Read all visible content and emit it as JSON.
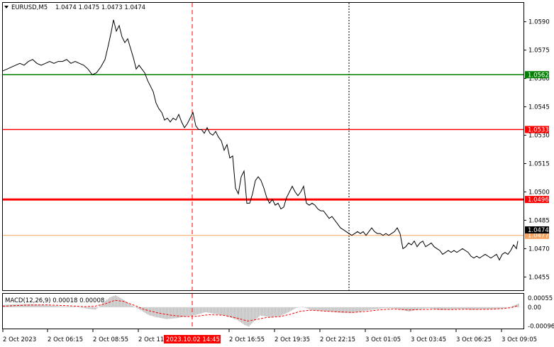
{
  "header": {
    "symbol": "EURUSD,M5",
    "ohlc": "1.0474 1.0475 1.0473 1.0474"
  },
  "macd_header": "MACD(12,26,9) 0.00018 0.00008",
  "colors": {
    "price_line": "#000000",
    "support_line": "#008000",
    "resistance_line": "#ff0000",
    "bid_line": "#f4a460",
    "cursor_line": "#ff0000",
    "macd_hist": "#c0c0c0",
    "macd_signal": "#ff0000",
    "crosshair": "#000000"
  },
  "chart_data": {
    "type": "line",
    "y_axis": {
      "ticks": [
        "1.0590",
        "1.0575",
        "1.0560",
        "1.0545",
        "1.0530",
        "1.0515",
        "1.0500",
        "1.0485",
        "1.0470",
        "1.0455"
      ],
      "range": [
        1.0448,
        1.06
      ]
    },
    "x_axis": {
      "ticks": [
        "2 Oct 2023",
        "2 Oct 06:15",
        "2 Oct 08:55",
        "2 Oct 11",
        "2 Oct 16:55",
        "2 Oct 19:35",
        "2 Oct 22:15",
        "3 Oct 01:05",
        "3 Oct 03:45",
        "3 Oct 06:25",
        "3 Oct 09:05"
      ],
      "cursor_label": "2023.10.02 14:45"
    },
    "levels": [
      {
        "value": 1.0562,
        "label": "1.0562",
        "role": "support"
      },
      {
        "value": 1.0533,
        "label": "1.0533",
        "role": "resistance"
      },
      {
        "value": 1.0496,
        "label": "1.0496",
        "role": "resistance"
      },
      {
        "value": 1.0477,
        "label": "1.0477",
        "role": "bid"
      }
    ],
    "current_price": "1.0474",
    "price_series": [
      [
        0,
        1.0564
      ],
      [
        6,
        1.0565
      ],
      [
        12,
        1.0566
      ],
      [
        18,
        1.0567
      ],
      [
        24,
        1.0568
      ],
      [
        30,
        1.0567
      ],
      [
        36,
        1.0569
      ],
      [
        42,
        1.057
      ],
      [
        48,
        1.0568
      ],
      [
        54,
        1.0567
      ],
      [
        60,
        1.0568
      ],
      [
        66,
        1.0569
      ],
      [
        72,
        1.0568
      ],
      [
        78,
        1.0569
      ],
      [
        84,
        1.0569
      ],
      [
        90,
        1.057
      ],
      [
        96,
        1.0568
      ],
      [
        102,
        1.0569
      ],
      [
        108,
        1.0568
      ],
      [
        114,
        1.0567
      ],
      [
        120,
        1.0565
      ],
      [
        126,
        1.0562
      ],
      [
        132,
        1.0563
      ],
      [
        138,
        1.0566
      ],
      [
        144,
        1.057
      ],
      [
        149,
        1.0578
      ],
      [
        153,
        1.0585
      ],
      [
        156,
        1.0591
      ],
      [
        160,
        1.0585
      ],
      [
        164,
        1.0588
      ],
      [
        168,
        1.0582
      ],
      [
        172,
        1.0579
      ],
      [
        176,
        1.0581
      ],
      [
        180,
        1.0576
      ],
      [
        184,
        1.0571
      ],
      [
        188,
        1.0565
      ],
      [
        192,
        1.0567
      ],
      [
        196,
        1.0565
      ],
      [
        200,
        1.0563
      ],
      [
        204,
        1.0559
      ],
      [
        208,
        1.0556
      ],
      [
        212,
        1.0553
      ],
      [
        216,
        1.0547
      ],
      [
        220,
        1.0544
      ],
      [
        224,
        1.0542
      ],
      [
        228,
        1.0538
      ],
      [
        232,
        1.0539
      ],
      [
        236,
        1.0537
      ],
      [
        240,
        1.0539
      ],
      [
        244,
        1.0538
      ],
      [
        248,
        1.0541
      ],
      [
        252,
        1.0537
      ],
      [
        256,
        1.0534
      ],
      [
        260,
        1.0536
      ],
      [
        264,
        1.0539
      ],
      [
        268,
        1.0542
      ],
      [
        272,
        1.0535
      ],
      [
        276,
        1.0533
      ],
      [
        280,
        1.0533
      ],
      [
        284,
        1.0531
      ],
      [
        288,
        1.0534
      ],
      [
        292,
        1.0531
      ],
      [
        296,
        1.053
      ],
      [
        300,
        1.0532
      ],
      [
        304,
        1.0529
      ],
      [
        308,
        1.0527
      ],
      [
        312,
        1.0522
      ],
      [
        316,
        1.0525
      ],
      [
        320,
        1.0518
      ],
      [
        324,
        1.0519
      ],
      [
        328,
        1.0502
      ],
      [
        332,
        1.0499
      ],
      [
        336,
        1.0508
      ],
      [
        340,
        1.0511
      ],
      [
        344,
        1.0494
      ],
      [
        348,
        1.0494
      ],
      [
        352,
        1.0499
      ],
      [
        356,
        1.0506
      ],
      [
        360,
        1.0508
      ],
      [
        364,
        1.0506
      ],
      [
        368,
        1.0502
      ],
      [
        372,
        1.0497
      ],
      [
        376,
        1.0494
      ],
      [
        380,
        1.0496
      ],
      [
        384,
        1.0493
      ],
      [
        388,
        1.0494
      ],
      [
        392,
        1.0491
      ],
      [
        396,
        1.0492
      ],
      [
        400,
        1.0497
      ],
      [
        404,
        1.05
      ],
      [
        408,
        1.0503
      ],
      [
        412,
        1.05
      ],
      [
        416,
        1.0498
      ],
      [
        420,
        1.05
      ],
      [
        424,
        1.0503
      ],
      [
        428,
        1.0494
      ],
      [
        432,
        1.0493
      ],
      [
        436,
        1.0494
      ],
      [
        440,
        1.0493
      ],
      [
        444,
        1.0491
      ],
      [
        448,
        1.049
      ],
      [
        452,
        1.049
      ],
      [
        456,
        1.0488
      ],
      [
        460,
        1.0486
      ],
      [
        464,
        1.0487
      ],
      [
        468,
        1.0485
      ],
      [
        472,
        1.0483
      ],
      [
        476,
        1.0481
      ],
      [
        480,
        1.048
      ],
      [
        484,
        1.0479
      ],
      [
        488,
        1.0478
      ],
      [
        492,
        1.0477
      ],
      [
        496,
        1.0478
      ],
      [
        500,
        1.0479
      ],
      [
        504,
        1.0478
      ],
      [
        508,
        1.0479
      ],
      [
        512,
        1.0477
      ],
      [
        516,
        1.0479
      ],
      [
        520,
        1.0481
      ],
      [
        524,
        1.0479
      ],
      [
        528,
        1.0478
      ],
      [
        532,
        1.0478
      ],
      [
        536,
        1.0477
      ],
      [
        540,
        1.0478
      ],
      [
        544,
        1.0477
      ],
      [
        548,
        1.0478
      ],
      [
        552,
        1.0479
      ],
      [
        556,
        1.0481
      ],
      [
        560,
        1.0478
      ],
      [
        564,
        1.047
      ],
      [
        568,
        1.0471
      ],
      [
        572,
        1.0473
      ],
      [
        576,
        1.0472
      ],
      [
        580,
        1.0474
      ],
      [
        584,
        1.0471
      ],
      [
        588,
        1.0473
      ],
      [
        592,
        1.0474
      ],
      [
        596,
        1.0471
      ],
      [
        600,
        1.0472
      ],
      [
        604,
        1.0473
      ],
      [
        608,
        1.0471
      ],
      [
        612,
        1.047
      ],
      [
        616,
        1.0469
      ],
      [
        620,
        1.0467
      ],
      [
        624,
        1.0468
      ],
      [
        628,
        1.0469
      ],
      [
        632,
        1.0468
      ],
      [
        636,
        1.0469
      ],
      [
        640,
        1.0468
      ],
      [
        644,
        1.0469
      ],
      [
        648,
        1.047
      ],
      [
        652,
        1.0469
      ],
      [
        656,
        1.0468
      ],
      [
        660,
        1.0466
      ],
      [
        664,
        1.0465
      ],
      [
        668,
        1.0466
      ],
      [
        672,
        1.0465
      ],
      [
        676,
        1.0466
      ],
      [
        680,
        1.0467
      ],
      [
        684,
        1.0466
      ],
      [
        688,
        1.0465
      ],
      [
        692,
        1.0466
      ],
      [
        696,
        1.0467
      ],
      [
        700,
        1.0464
      ],
      [
        704,
        1.0467
      ],
      [
        708,
        1.0468
      ],
      [
        712,
        1.0467
      ],
      [
        716,
        1.0469
      ],
      [
        720,
        1.0472
      ],
      [
        724,
        1.047
      ],
      [
        726,
        1.0474
      ]
    ],
    "macd": {
      "y_ticks": [
        "0.00055",
        "0.00",
        "-0.00096"
      ],
      "y_range": [
        -0.00108,
        0.00068
      ],
      "histogram": [
        [
          0,
          0.00012
        ],
        [
          20,
          0.00015
        ],
        [
          40,
          0.00016
        ],
        [
          60,
          0.0001
        ],
        [
          80,
          5e-05
        ],
        [
          100,
          3e-05
        ],
        [
          120,
          -8e-05
        ],
        [
          130,
          -0.00012
        ],
        [
          140,
          0.0002
        ],
        [
          150,
          0.0005
        ],
        [
          158,
          0.0006
        ],
        [
          166,
          0.00045
        ],
        [
          180,
          0.00012
        ],
        [
          195,
          -0.00018
        ],
        [
          205,
          -0.0004
        ],
        [
          215,
          -0.0005
        ],
        [
          230,
          -0.0006
        ],
        [
          245,
          -0.00055
        ],
        [
          255,
          -0.00048
        ],
        [
          270,
          -0.0004
        ],
        [
          285,
          -0.00025
        ],
        [
          300,
          -0.00035
        ],
        [
          315,
          -0.00045
        ],
        [
          330,
          -0.00065
        ],
        [
          340,
          -0.0009
        ],
        [
          346,
          -0.00098
        ],
        [
          352,
          -0.00075
        ],
        [
          362,
          -0.00042
        ],
        [
          375,
          -0.0005
        ],
        [
          390,
          -0.00045
        ],
        [
          402,
          -0.00025
        ],
        [
          412,
          -5e-05
        ],
        [
          422,
          3e-05
        ],
        [
          432,
          -0.00012
        ],
        [
          445,
          -0.00018
        ],
        [
          460,
          -0.00022
        ],
        [
          475,
          -0.00028
        ],
        [
          490,
          -0.0003
        ],
        [
          505,
          -0.0002
        ],
        [
          520,
          -0.00012
        ],
        [
          535,
          -6e-05
        ],
        [
          548,
          -5e-05
        ],
        [
          560,
          -0.00012
        ],
        [
          572,
          -0.00022
        ],
        [
          585,
          -0.0001
        ],
        [
          600,
          -5e-05
        ],
        [
          615,
          -0.00015
        ],
        [
          630,
          -0.00012
        ],
        [
          645,
          -8e-05
        ],
        [
          660,
          -0.00014
        ],
        [
          675,
          -0.0001
        ],
        [
          690,
          -0.0001
        ],
        [
          705,
          -6e-05
        ],
        [
          715,
          2e-05
        ],
        [
          722,
          0.00012
        ],
        [
          726,
          0.00018
        ]
      ],
      "signal": [
        [
          0,
          5e-05
        ],
        [
          30,
          0.0001
        ],
        [
          60,
          0.00012
        ],
        [
          90,
          8e-05
        ],
        [
          115,
          3e-05
        ],
        [
          130,
          5e-05
        ],
        [
          145,
          0.00018
        ],
        [
          158,
          0.00035
        ],
        [
          170,
          0.0003
        ],
        [
          185,
          0.0001
        ],
        [
          200,
          -0.00012
        ],
        [
          220,
          -0.0003
        ],
        [
          240,
          -0.00042
        ],
        [
          260,
          -0.00048
        ],
        [
          275,
          -0.00045
        ],
        [
          290,
          -0.00038
        ],
        [
          310,
          -0.0004
        ],
        [
          330,
          -0.00055
        ],
        [
          345,
          -0.0007
        ],
        [
          358,
          -0.00062
        ],
        [
          372,
          -0.00052
        ],
        [
          390,
          -0.00048
        ],
        [
          405,
          -0.00036
        ],
        [
          420,
          -0.0002
        ],
        [
          435,
          -0.00015
        ],
        [
          455,
          -0.0002
        ],
        [
          475,
          -0.00024
        ],
        [
          495,
          -0.00026
        ],
        [
          510,
          -0.00022
        ],
        [
          530,
          -0.00014
        ],
        [
          550,
          -9e-05
        ],
        [
          570,
          -0.00014
        ],
        [
          590,
          -0.00012
        ],
        [
          610,
          -0.0001
        ],
        [
          630,
          -0.00012
        ],
        [
          650,
          -0.0001
        ],
        [
          670,
          -0.00011
        ],
        [
          690,
          -0.0001
        ],
        [
          705,
          -7e-05
        ],
        [
          718,
          -1e-05
        ],
        [
          726,
          8e-05
        ]
      ]
    }
  }
}
